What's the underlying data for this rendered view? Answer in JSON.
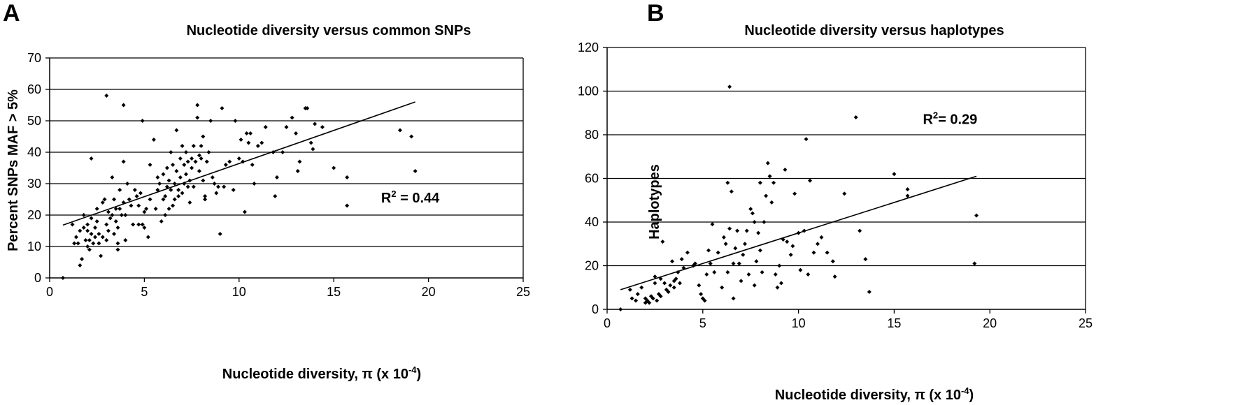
{
  "chart_data": [
    {
      "type": "scatter",
      "panel": "A",
      "title": "Nucleotide diversity versus common SNPs",
      "xlabel": "Nucleotide diversity, π (x 10",
      "xlabel_exp": "-4",
      "xlabel_end": ")",
      "ylabel": "Percent SNPs MAF > 5%",
      "xlim": [
        0,
        25
      ],
      "ylim": [
        0,
        70
      ],
      "xticks": [
        0,
        5,
        10,
        15,
        20,
        25
      ],
      "yticks": [
        0,
        10,
        20,
        30,
        40,
        50,
        60,
        70
      ],
      "grid": "horizontal",
      "annotation": {
        "base": "R",
        "exp": "2",
        "rest": " = 0.44",
        "x": 17.5,
        "y": 24
      },
      "trendline": {
        "x": [
          0.7,
          19.3
        ],
        "y": [
          16.8,
          56
        ]
      },
      "points": [
        [
          0.7,
          0
        ],
        [
          1.2,
          17
        ],
        [
          1.3,
          11
        ],
        [
          1.4,
          13
        ],
        [
          1.5,
          11
        ],
        [
          1.6,
          15
        ],
        [
          1.6,
          4
        ],
        [
          1.7,
          6
        ],
        [
          1.8,
          20
        ],
        [
          1.8,
          16
        ],
        [
          1.9,
          12
        ],
        [
          2.0,
          15
        ],
        [
          2.0,
          10
        ],
        [
          2.0,
          17
        ],
        [
          2.1,
          9
        ],
        [
          2.1,
          12
        ],
        [
          2.2,
          38
        ],
        [
          2.2,
          19
        ],
        [
          2.2,
          14
        ],
        [
          2.3,
          11
        ],
        [
          2.4,
          13
        ],
        [
          2.4,
          16
        ],
        [
          2.5,
          22
        ],
        [
          2.5,
          18
        ],
        [
          2.6,
          11
        ],
        [
          2.6,
          14
        ],
        [
          2.7,
          7
        ],
        [
          2.8,
          13
        ],
        [
          2.8,
          24
        ],
        [
          2.9,
          25
        ],
        [
          3.0,
          58
        ],
        [
          3.0,
          17
        ],
        [
          3.0,
          12
        ],
        [
          3.1,
          21
        ],
        [
          3.1,
          15
        ],
        [
          3.2,
          19
        ],
        [
          3.3,
          20
        ],
        [
          3.3,
          32
        ],
        [
          3.4,
          25
        ],
        [
          3.4,
          14
        ],
        [
          3.5,
          22
        ],
        [
          3.5,
          18
        ],
        [
          3.6,
          11
        ],
        [
          3.6,
          9
        ],
        [
          3.6,
          16
        ],
        [
          3.7,
          28
        ],
        [
          3.7,
          22
        ],
        [
          3.8,
          20
        ],
        [
          3.9,
          24
        ],
        [
          3.9,
          37
        ],
        [
          3.9,
          55
        ],
        [
          4.0,
          20
        ],
        [
          4.0,
          12
        ],
        [
          4.1,
          30
        ],
        [
          4.2,
          25
        ],
        [
          4.3,
          23
        ],
        [
          4.4,
          17
        ],
        [
          4.5,
          28
        ],
        [
          4.6,
          26
        ],
        [
          4.7,
          17
        ],
        [
          4.7,
          23
        ],
        [
          4.8,
          27
        ],
        [
          4.9,
          50
        ],
        [
          4.9,
          17
        ],
        [
          5.0,
          16
        ],
        [
          5.0,
          21
        ],
        [
          5.1,
          22
        ],
        [
          5.2,
          13
        ],
        [
          5.3,
          25
        ],
        [
          5.3,
          36
        ],
        [
          5.5,
          44
        ],
        [
          5.6,
          22
        ],
        [
          5.7,
          32
        ],
        [
          5.7,
          28
        ],
        [
          5.8,
          30
        ],
        [
          5.9,
          18
        ],
        [
          6.0,
          25
        ],
        [
          6.0,
          33
        ],
        [
          6.1,
          20
        ],
        [
          6.1,
          26
        ],
        [
          6.2,
          35
        ],
        [
          6.2,
          29
        ],
        [
          6.3,
          22
        ],
        [
          6.3,
          31
        ],
        [
          6.4,
          28
        ],
        [
          6.4,
          40
        ],
        [
          6.5,
          23
        ],
        [
          6.5,
          36
        ],
        [
          6.6,
          25
        ],
        [
          6.6,
          30
        ],
        [
          6.7,
          47
        ],
        [
          6.7,
          34
        ],
        [
          6.8,
          26
        ],
        [
          6.8,
          28
        ],
        [
          6.9,
          32
        ],
        [
          6.9,
          38
        ],
        [
          7.0,
          42
        ],
        [
          7.0,
          27
        ],
        [
          7.1,
          30
        ],
        [
          7.1,
          36
        ],
        [
          7.2,
          40
        ],
        [
          7.2,
          33
        ],
        [
          7.3,
          29
        ],
        [
          7.3,
          37
        ],
        [
          7.4,
          31
        ],
        [
          7.4,
          24
        ],
        [
          7.5,
          38
        ],
        [
          7.5,
          35
        ],
        [
          7.6,
          42
        ],
        [
          7.6,
          29
        ],
        [
          7.7,
          37
        ],
        [
          7.8,
          51
        ],
        [
          7.8,
          55
        ],
        [
          7.9,
          34
        ],
        [
          7.9,
          39
        ],
        [
          8.0,
          38
        ],
        [
          8.0,
          42
        ],
        [
          8.1,
          45
        ],
        [
          8.1,
          31
        ],
        [
          8.2,
          26
        ],
        [
          8.2,
          25
        ],
        [
          8.3,
          37
        ],
        [
          8.4,
          40
        ],
        [
          8.5,
          50
        ],
        [
          8.6,
          32
        ],
        [
          8.7,
          30
        ],
        [
          8.8,
          27
        ],
        [
          8.9,
          29
        ],
        [
          9.0,
          14
        ],
        [
          9.1,
          54
        ],
        [
          9.2,
          29
        ],
        [
          9.3,
          36
        ],
        [
          9.5,
          37
        ],
        [
          9.7,
          28
        ],
        [
          9.8,
          50
        ],
        [
          10.0,
          38
        ],
        [
          10.1,
          44
        ],
        [
          10.2,
          37
        ],
        [
          10.3,
          21
        ],
        [
          10.4,
          46
        ],
        [
          10.5,
          43
        ],
        [
          10.6,
          46
        ],
        [
          10.7,
          36
        ],
        [
          10.8,
          30
        ],
        [
          11.0,
          42
        ],
        [
          11.2,
          43
        ],
        [
          11.4,
          48
        ],
        [
          11.8,
          40
        ],
        [
          11.9,
          26
        ],
        [
          12.0,
          32
        ],
        [
          12.3,
          40
        ],
        [
          12.5,
          48
        ],
        [
          12.8,
          51
        ],
        [
          13.0,
          46
        ],
        [
          13.1,
          34
        ],
        [
          13.2,
          37
        ],
        [
          13.5,
          54
        ],
        [
          13.6,
          54
        ],
        [
          13.8,
          43
        ],
        [
          13.9,
          41
        ],
        [
          14.0,
          49
        ],
        [
          14.4,
          48
        ],
        [
          15.0,
          35
        ],
        [
          15.7,
          23
        ],
        [
          15.7,
          32
        ],
        [
          18.5,
          47
        ],
        [
          19.1,
          45
        ],
        [
          19.3,
          34
        ]
      ]
    },
    {
      "type": "scatter",
      "panel": "B",
      "title": "Nucleotide diversity versus haplotypes",
      "xlabel": "Nucleotide diversity, π (x 10",
      "xlabel_exp": "-4",
      "xlabel_end": ")",
      "ylabel": "Haplotypes",
      "xlim": [
        0,
        25
      ],
      "ylim": [
        0,
        120
      ],
      "xticks": [
        0,
        5,
        10,
        15,
        20,
        25
      ],
      "yticks": [
        0,
        20,
        40,
        60,
        80,
        100,
        120
      ],
      "grid": "horizontal",
      "annotation": {
        "base": "R",
        "exp": "2",
        "rest": "= 0.29",
        "x": 16.5,
        "y": 85
      },
      "trendline": {
        "x": [
          0.7,
          19.3
        ],
        "y": [
          9,
          61
        ]
      },
      "points": [
        [
          0.7,
          0
        ],
        [
          1.2,
          9
        ],
        [
          1.3,
          5
        ],
        [
          1.5,
          4
        ],
        [
          1.6,
          7
        ],
        [
          1.8,
          10
        ],
        [
          2.0,
          5
        ],
        [
          2.0,
          3
        ],
        [
          2.1,
          4
        ],
        [
          2.2,
          3
        ],
        [
          2.3,
          6
        ],
        [
          2.4,
          5
        ],
        [
          2.5,
          12
        ],
        [
          2.5,
          15
        ],
        [
          2.6,
          4
        ],
        [
          2.7,
          7
        ],
        [
          2.8,
          14
        ],
        [
          2.8,
          6
        ],
        [
          2.9,
          31
        ],
        [
          3.0,
          12
        ],
        [
          3.1,
          9
        ],
        [
          3.2,
          8
        ],
        [
          3.3,
          11
        ],
        [
          3.4,
          22
        ],
        [
          3.5,
          10
        ],
        [
          3.5,
          13
        ],
        [
          3.6,
          14
        ],
        [
          3.7,
          17
        ],
        [
          3.8,
          12
        ],
        [
          3.9,
          23
        ],
        [
          4.0,
          19
        ],
        [
          4.2,
          26
        ],
        [
          4.5,
          20
        ],
        [
          4.6,
          21
        ],
        [
          4.8,
          11
        ],
        [
          4.9,
          7
        ],
        [
          5.0,
          5
        ],
        [
          5.1,
          4
        ],
        [
          5.2,
          16
        ],
        [
          5.3,
          27
        ],
        [
          5.4,
          21
        ],
        [
          5.5,
          39
        ],
        [
          5.6,
          17
        ],
        [
          5.8,
          26
        ],
        [
          6.0,
          10
        ],
        [
          6.1,
          33
        ],
        [
          6.2,
          30
        ],
        [
          6.3,
          17
        ],
        [
          6.3,
          58
        ],
        [
          6.4,
          102
        ],
        [
          6.4,
          37
        ],
        [
          6.5,
          54
        ],
        [
          6.6,
          21
        ],
        [
          6.6,
          5
        ],
        [
          6.7,
          28
        ],
        [
          6.8,
          36
        ],
        [
          6.9,
          21
        ],
        [
          7.0,
          13
        ],
        [
          7.1,
          25
        ],
        [
          7.2,
          30
        ],
        [
          7.3,
          36
        ],
        [
          7.4,
          16
        ],
        [
          7.5,
          46
        ],
        [
          7.6,
          44
        ],
        [
          7.7,
          40
        ],
        [
          7.7,
          11
        ],
        [
          7.8,
          22
        ],
        [
          7.9,
          35
        ],
        [
          8.0,
          27
        ],
        [
          8.0,
          58
        ],
        [
          8.1,
          17
        ],
        [
          8.2,
          40
        ],
        [
          8.3,
          52
        ],
        [
          8.4,
          67
        ],
        [
          8.5,
          61
        ],
        [
          8.6,
          49
        ],
        [
          8.7,
          58
        ],
        [
          8.8,
          16
        ],
        [
          8.9,
          10
        ],
        [
          9.0,
          20
        ],
        [
          9.1,
          12
        ],
        [
          9.2,
          32
        ],
        [
          9.3,
          64
        ],
        [
          9.4,
          31
        ],
        [
          9.6,
          25
        ],
        [
          9.7,
          29
        ],
        [
          9.8,
          53
        ],
        [
          10.0,
          35
        ],
        [
          10.1,
          18
        ],
        [
          10.3,
          36
        ],
        [
          10.4,
          78
        ],
        [
          10.5,
          16
        ],
        [
          10.6,
          59
        ],
        [
          10.8,
          26
        ],
        [
          11.0,
          30
        ],
        [
          11.2,
          33
        ],
        [
          11.5,
          26
        ],
        [
          11.8,
          22
        ],
        [
          11.9,
          15
        ],
        [
          12.4,
          53
        ],
        [
          13.0,
          88
        ],
        [
          13.2,
          36
        ],
        [
          13.5,
          23
        ],
        [
          13.7,
          8
        ],
        [
          15.0,
          62
        ],
        [
          15.7,
          55
        ],
        [
          15.7,
          52
        ],
        [
          19.2,
          21
        ],
        [
          19.3,
          43
        ]
      ]
    }
  ]
}
